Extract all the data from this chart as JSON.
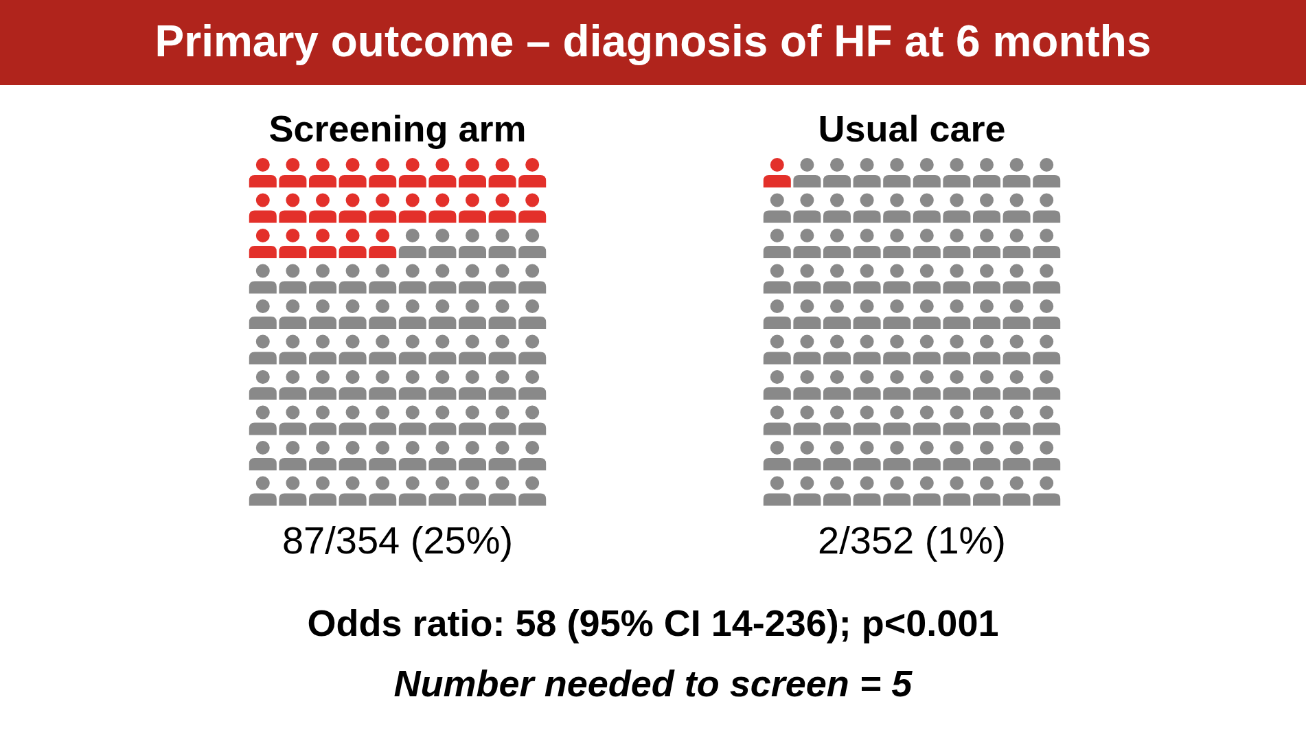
{
  "chart_data": [
    {
      "type": "other",
      "title": "Primary outcome – diagnosis of HF at 6 months",
      "annotations": [
        "Odds ratio: 58 (95% CI 14-236); p<0.001",
        "Number needed to screen = 5"
      ]
    },
    {
      "type": "other",
      "title": "Screening arm",
      "values": [
        25
      ],
      "value_labels": [
        "87/354 (25%)"
      ],
      "colors": [
        "#e3302a"
      ]
    },
    {
      "type": "other",
      "title": "Usual care",
      "values": [
        1
      ],
      "value_labels": [
        "2/352 (1%)"
      ],
      "colors": [
        "#e3302a"
      ]
    }
  ]
}
